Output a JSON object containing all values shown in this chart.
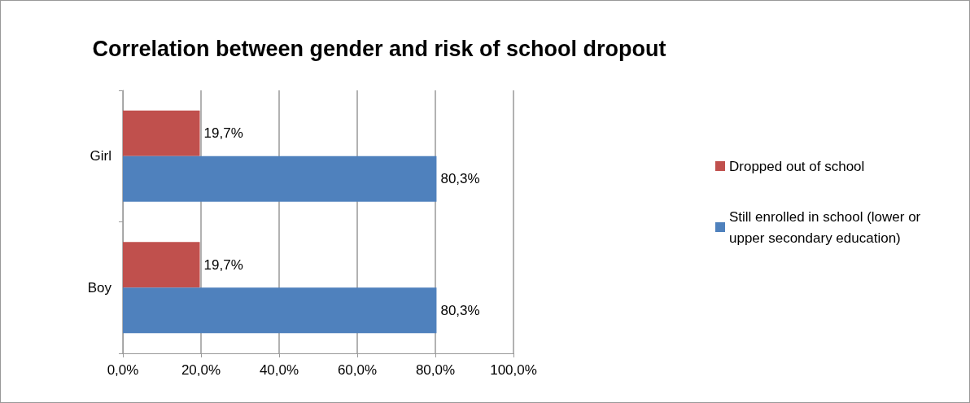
{
  "chart_data": {
    "type": "bar",
    "orientation": "horizontal",
    "title": "Correlation between gender and risk of school dropout",
    "categories": [
      "Girl",
      "Boy"
    ],
    "series": [
      {
        "name": "Dropped out of school",
        "color": "#c0504d",
        "values": [
          19.7,
          19.7
        ],
        "value_labels": [
          "19,7%",
          "19,7%"
        ]
      },
      {
        "name": "Still enrolled in school (lower or upper secondary education)",
        "color": "#4f81bd",
        "values": [
          80.3,
          80.3
        ],
        "value_labels": [
          "80,3%",
          "80,3%"
        ]
      }
    ],
    "xlim": [
      0,
      100
    ],
    "xticks": [
      {
        "value": 0,
        "label": "0,0%"
      },
      {
        "value": 20,
        "label": "20,0%"
      },
      {
        "value": 40,
        "label": "40,0%"
      },
      {
        "value": 60,
        "label": "60,0%"
      },
      {
        "value": 80,
        "label": "80,0%"
      },
      {
        "value": 100,
        "label": "100,0%"
      }
    ],
    "grid": "x",
    "legend": "right"
  }
}
